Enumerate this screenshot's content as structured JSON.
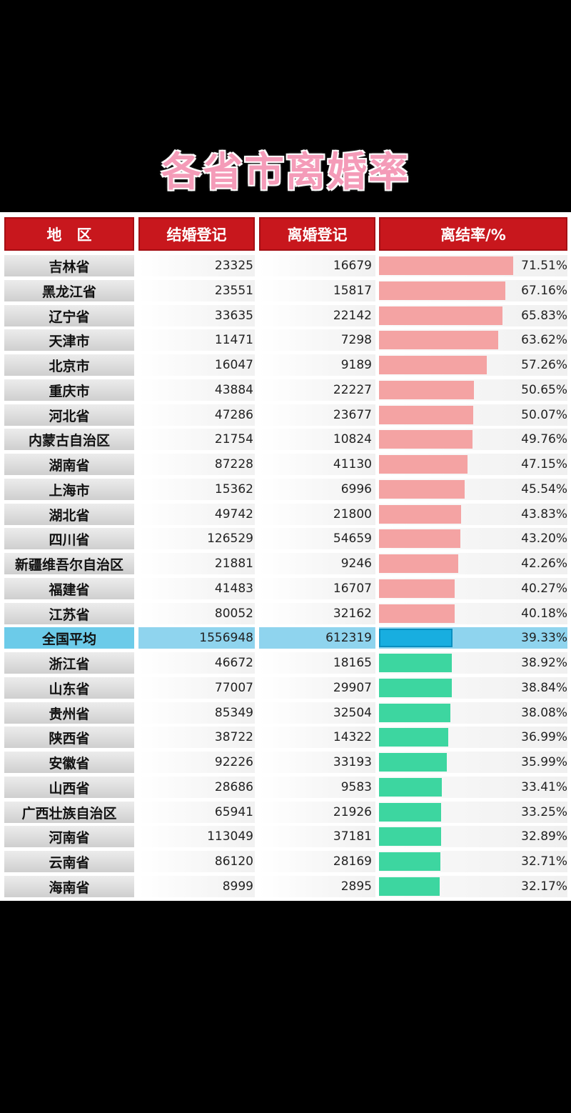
{
  "title": "各省市离婚率",
  "headers": [
    "地　区",
    "结婚登记",
    "离婚登记",
    "离结率/%"
  ],
  "colors": {
    "header_bg": "#c8171d",
    "above_avg_bar": "#f4a3a3",
    "below_avg_bar": "#3dd6a0",
    "avg_bar": "#18aee0",
    "title_pink": "#f49bb8"
  },
  "chart_data": {
    "type": "table",
    "columns": [
      "地　区",
      "结婚登记",
      "离婚登记",
      "离结率/%"
    ],
    "average_label": "全国平均",
    "rows": [
      {
        "region": "吉林省",
        "marriages": "23325",
        "divorces": "16679",
        "rate": 71.51,
        "rate_text": "71.51%"
      },
      {
        "region": "黑龙江省",
        "marriages": "23551",
        "divorces": "15817",
        "rate": 67.16,
        "rate_text": "67.16%"
      },
      {
        "region": "辽宁省",
        "marriages": "33635",
        "divorces": "22142",
        "rate": 65.83,
        "rate_text": "65.83%"
      },
      {
        "region": "天津市",
        "marriages": "11471",
        "divorces": "7298",
        "rate": 63.62,
        "rate_text": "63.62%"
      },
      {
        "region": "北京市",
        "marriages": "16047",
        "divorces": "9189",
        "rate": 57.26,
        "rate_text": "57.26%"
      },
      {
        "region": "重庆市",
        "marriages": "43884",
        "divorces": "22227",
        "rate": 50.65,
        "rate_text": "50.65%"
      },
      {
        "region": "河北省",
        "marriages": "47286",
        "divorces": "23677",
        "rate": 50.07,
        "rate_text": "50.07%"
      },
      {
        "region": "内蒙古自治区",
        "marriages": "21754",
        "divorces": "10824",
        "rate": 49.76,
        "rate_text": "49.76%"
      },
      {
        "region": "湖南省",
        "marriages": "87228",
        "divorces": "41130",
        "rate": 47.15,
        "rate_text": "47.15%"
      },
      {
        "region": "上海市",
        "marriages": "15362",
        "divorces": "6996",
        "rate": 45.54,
        "rate_text": "45.54%"
      },
      {
        "region": "湖北省",
        "marriages": "49742",
        "divorces": "21800",
        "rate": 43.83,
        "rate_text": "43.83%"
      },
      {
        "region": "四川省",
        "marriages": "126529",
        "divorces": "54659",
        "rate": 43.2,
        "rate_text": "43.20%"
      },
      {
        "region": "新疆维吾尔自治区",
        "marriages": "21881",
        "divorces": "9246",
        "rate": 42.26,
        "rate_text": "42.26%"
      },
      {
        "region": "福建省",
        "marriages": "41483",
        "divorces": "16707",
        "rate": 40.27,
        "rate_text": "40.27%"
      },
      {
        "region": "江苏省",
        "marriages": "80052",
        "divorces": "32162",
        "rate": 40.18,
        "rate_text": "40.18%"
      },
      {
        "region": "全国平均",
        "marriages": "1556948",
        "divorces": "612319",
        "rate": 39.33,
        "rate_text": "39.33%",
        "is_average": true
      },
      {
        "region": "浙江省",
        "marriages": "46672",
        "divorces": "18165",
        "rate": 38.92,
        "rate_text": "38.92%"
      },
      {
        "region": "山东省",
        "marriages": "77007",
        "divorces": "29907",
        "rate": 38.84,
        "rate_text": "38.84%"
      },
      {
        "region": "贵州省",
        "marriages": "85349",
        "divorces": "32504",
        "rate": 38.08,
        "rate_text": "38.08%"
      },
      {
        "region": "陕西省",
        "marriages": "38722",
        "divorces": "14322",
        "rate": 36.99,
        "rate_text": "36.99%"
      },
      {
        "region": "安徽省",
        "marriages": "92226",
        "divorces": "33193",
        "rate": 35.99,
        "rate_text": "35.99%"
      },
      {
        "region": "山西省",
        "marriages": "28686",
        "divorces": "9583",
        "rate": 33.41,
        "rate_text": "33.41%"
      },
      {
        "region": "广西壮族自治区",
        "marriages": "65941",
        "divorces": "21926",
        "rate": 33.25,
        "rate_text": "33.25%"
      },
      {
        "region": "河南省",
        "marriages": "113049",
        "divorces": "37181",
        "rate": 32.89,
        "rate_text": "32.89%"
      },
      {
        "region": "云南省",
        "marriages": "86120",
        "divorces": "28169",
        "rate": 32.71,
        "rate_text": "32.71%"
      },
      {
        "region": "海南省",
        "marriages": "8999",
        "divorces": "2895",
        "rate": 32.17,
        "rate_text": "32.17%"
      }
    ]
  }
}
